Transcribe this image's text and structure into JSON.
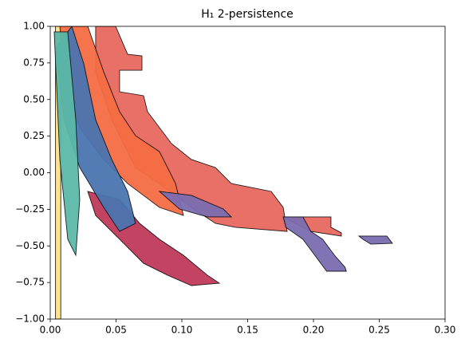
{
  "chart_data": {
    "type": "polygon",
    "title": "H₁ 2-persistence",
    "xlim": [
      0,
      0.3
    ],
    "ylim": [
      -1,
      1
    ],
    "xticks": [
      {
        "value": 0,
        "label": "0.00"
      },
      {
        "value": 0.05,
        "label": "0.05"
      },
      {
        "value": 0.1,
        "label": "0.10"
      },
      {
        "value": 0.15,
        "label": "0.15"
      },
      {
        "value": 0.2,
        "label": "0.20"
      },
      {
        "value": 0.25,
        "label": "0.25"
      },
      {
        "value": 0.3,
        "label": "0.30"
      }
    ],
    "yticks": [
      {
        "value": 1,
        "label": "1.00"
      },
      {
        "value": 0.75,
        "label": "0.75"
      },
      {
        "value": 0.5,
        "label": "0.50"
      },
      {
        "value": 0.25,
        "label": "0.25"
      },
      {
        "value": 0,
        "label": "0.00"
      },
      {
        "value": -0.25,
        "label": "−0.25"
      },
      {
        "value": -0.5,
        "label": "−0.50"
      },
      {
        "value": -0.75,
        "label": "−0.75"
      },
      {
        "value": -1,
        "label": "−1.00"
      }
    ],
    "series": [
      {
        "color": "#fee08b",
        "x": [
          0.004,
          0.008,
          0.008,
          0.004
        ],
        "y": [
          1,
          1,
          -1,
          -1
        ]
      },
      {
        "color": "#e8685f",
        "x": [
          0.0345,
          0.0497,
          0.0588,
          0.0697,
          0.0697,
          0.0527,
          0.0527,
          0.0709,
          0.0739,
          0.0921,
          0.1073,
          0.1255,
          0.1376,
          0.1679,
          0.177,
          0.18,
          0.1406,
          0.1255,
          0.1073,
          0.083,
          0.0648,
          0.0467,
          0.0345
        ],
        "y": [
          1,
          1,
          0.809,
          0.798,
          0.7,
          0.7,
          0.553,
          0.526,
          0.417,
          0.199,
          0.09,
          0.035,
          -0.074,
          -0.128,
          -0.237,
          -0.401,
          -0.373,
          -0.346,
          -0.237,
          -0.074,
          0.035,
          0.362,
          0.689
        ]
      },
      {
        "color": "#e8685f",
        "x": [
          0.177,
          0.2133,
          0.2133,
          0.2212,
          0.2212,
          0.198
        ],
        "y": [
          -0.302,
          -0.302,
          -0.373,
          -0.411,
          -0.433,
          -0.401
        ]
      },
      {
        "color": "#7b6bb0",
        "x": [
          0.177,
          0.192,
          0.198,
          0.207,
          0.216,
          0.224,
          0.225,
          0.21,
          0.201,
          0.192,
          0.179
        ],
        "y": [
          -0.302,
          -0.302,
          -0.401,
          -0.455,
          -0.564,
          -0.646,
          -0.673,
          -0.673,
          -0.564,
          -0.455,
          -0.373
        ]
      },
      {
        "color": "#7b6bb0",
        "x": [
          0.2345,
          0.2558,
          0.26,
          0.2436,
          0.2376
        ],
        "y": [
          -0.433,
          -0.433,
          -0.482,
          -0.488,
          -0.455
        ]
      },
      {
        "color": "#c0395a",
        "x": [
          0.0285,
          0.0527,
          0.0679,
          0.083,
          0.1012,
          0.1194,
          0.1285,
          0.1073,
          0.0891,
          0.0709,
          0.0527,
          0.0345
        ],
        "y": [
          -0.128,
          -0.183,
          -0.346,
          -0.455,
          -0.564,
          -0.7,
          -0.755,
          -0.771,
          -0.7,
          -0.619,
          -0.455,
          -0.292
        ]
      },
      {
        "color": "#f46d43",
        "x": [
          0.0073,
          0.0285,
          0.0406,
          0.0527,
          0.0648,
          0.083,
          0.0952,
          0.1012,
          0.083,
          0.0588,
          0.0406,
          0.0224,
          0.0103
        ],
        "y": [
          1,
          1,
          0.689,
          0.417,
          0.253,
          0.144,
          -0.074,
          -0.292,
          -0.237,
          -0.074,
          0.09,
          0.308,
          0.635
        ]
      },
      {
        "color": "#4a74b0",
        "x": [
          0.0042,
          0.0164,
          0.0255,
          0.0345,
          0.0467,
          0.0588,
          0.0648,
          0.0527,
          0.0406,
          0.0224,
          0.0103
        ],
        "y": [
          0.853,
          1,
          0.744,
          0.362,
          0.09,
          -0.128,
          -0.346,
          -0.401,
          -0.237,
          0.035,
          0.362
        ]
      },
      {
        "color": "#5bb8a8",
        "x": [
          0.003,
          0.0133,
          0.0194,
          0.0224,
          0.0194,
          0.0133,
          0.0073
        ],
        "y": [
          0.962,
          0.962,
          0.362,
          -0.183,
          -0.564,
          -0.455,
          0.09
        ]
      },
      {
        "color": "#7b6bb0",
        "x": [
          0.083,
          0.1073,
          0.1315,
          0.1376,
          0.1194,
          0.0982
        ],
        "y": [
          -0.128,
          -0.155,
          -0.248,
          -0.302,
          -0.302,
          -0.248
        ]
      }
    ]
  }
}
